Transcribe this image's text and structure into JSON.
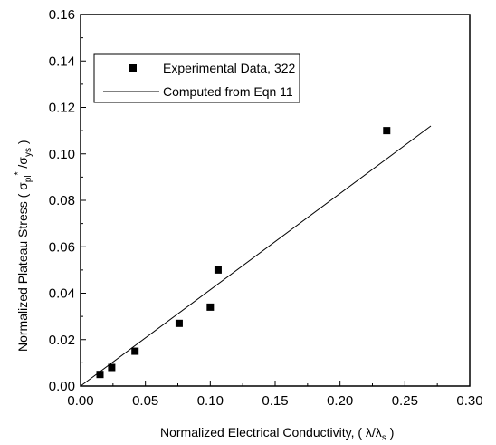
{
  "chart_data": {
    "type": "scatter",
    "xlabel": {
      "main": "Normalized Electrical Conductivity, ( λ/λ",
      "sub": "s",
      "end": " )"
    },
    "ylabel": {
      "main": "Normalized Plateau Stress ( σ",
      "sub1": "pl",
      "sup": "*",
      "mid": " /σ",
      "sub2": "ys",
      "end": " )"
    },
    "xlim": [
      0,
      0.3
    ],
    "ylim": [
      0,
      0.16
    ],
    "xticks": [
      "0.00",
      "0.05",
      "0.10",
      "0.15",
      "0.20",
      "0.25",
      "0.30"
    ],
    "yticks": [
      "0.00",
      "0.02",
      "0.04",
      "0.06",
      "0.08",
      "0.10",
      "0.12",
      "0.14",
      "0.16"
    ],
    "grid": false,
    "legend_position": "top-left",
    "series": [
      {
        "name": "Experimental Data, 322",
        "kind": "scatter",
        "marker": "square",
        "x": [
          0.015,
          0.024,
          0.042,
          0.076,
          0.1,
          0.106,
          0.236
        ],
        "y": [
          0.005,
          0.008,
          0.015,
          0.027,
          0.034,
          0.05,
          0.11
        ]
      },
      {
        "name": "Computed from Eqn 11",
        "kind": "line",
        "x": [
          0,
          0.27
        ],
        "y": [
          0,
          0.112
        ]
      }
    ]
  }
}
